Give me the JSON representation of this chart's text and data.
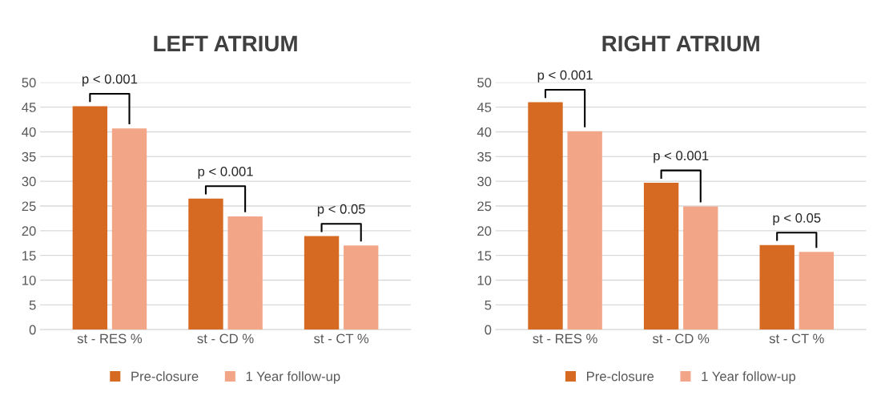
{
  "chart_data": [
    {
      "type": "bar",
      "title": "LEFT ATRIUM",
      "categories": [
        "st - RES %",
        "st - CD %",
        "st - CT %"
      ],
      "series": [
        {
          "name": "Pre-closure",
          "color": "#d66a22",
          "values": [
            45.2,
            26.5,
            18.9
          ]
        },
        {
          "name": "1 Year follow-up",
          "color": "#f2a687",
          "values": [
            40.7,
            22.9,
            17.0
          ]
        }
      ],
      "ylim": [
        0,
        50
      ],
      "yticks": [
        0,
        5,
        10,
        15,
        20,
        25,
        30,
        35,
        40,
        45,
        50
      ],
      "grid": "y",
      "legend": "bottom",
      "annotations": [
        "p < 0.001",
        "p < 0.001",
        "p < 0.05"
      ]
    },
    {
      "type": "bar",
      "title": "RIGHT ATRIUM",
      "categories": [
        "st - RES %",
        "st - CD %",
        "st - CT %"
      ],
      "series": [
        {
          "name": "Pre-closure",
          "color": "#d66a22",
          "values": [
            46.0,
            29.7,
            17.1
          ]
        },
        {
          "name": "1 Year follow-up",
          "color": "#f2a687",
          "values": [
            40.1,
            24.9,
            15.7
          ]
        }
      ],
      "ylim": [
        0,
        50
      ],
      "yticks": [
        0,
        5,
        10,
        15,
        20,
        25,
        30,
        35,
        40,
        45,
        50
      ],
      "grid": "y",
      "legend": "bottom",
      "annotations": [
        "p < 0.001",
        "p < 0.001",
        "p < 0.05"
      ]
    }
  ]
}
